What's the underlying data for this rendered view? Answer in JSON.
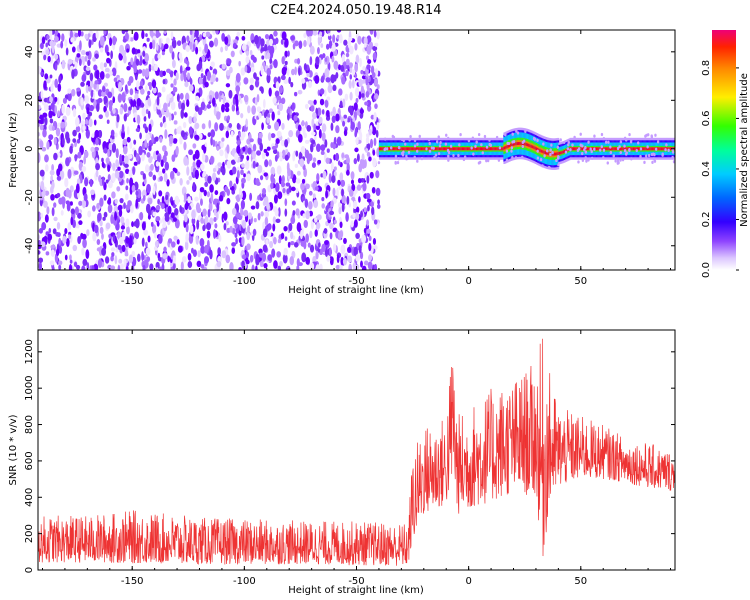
{
  "figure": {
    "title": "C2E4.2024.050.19.48.R14"
  },
  "colors": {
    "snr_line": "#ee3333",
    "frame": "#000000"
  },
  "chart_data": [
    {
      "type": "heatmap",
      "xlabel": "Height of straight line (km)",
      "ylabel": "Frequency (Hz)",
      "xlim": [
        -192,
        92
      ],
      "ylim": [
        -50,
        49
      ],
      "x_ticks": [
        "-150",
        "-100",
        "-50",
        "0",
        "50"
      ],
      "y_ticks": [
        "-40",
        "-20",
        "0",
        "20",
        "40"
      ],
      "colorbar": {
        "label": "Normalized spectral amplitude",
        "range": [
          0,
          0.95
        ],
        "ticks": [
          "0.0",
          "0.2",
          "0.4",
          "0.6",
          "0.8"
        ]
      },
      "description": "broadband noise (low amplitude) for heights below about -40 km; a narrow band near 0 Hz from about -40 km up to 92 km with peak amplitude near 0 Hz and a perturbation around 20 to 40 km",
      "noise_region_x": [
        -192,
        -40
      ],
      "signal_band_x": [
        -40,
        92
      ],
      "signal_center_hz": 0
    },
    {
      "type": "line",
      "xlabel": "Height of straight line (km)",
      "ylabel": "SNR (10 * v/v)",
      "xlim": [
        -192,
        92
      ],
      "ylim": [
        0,
        1320
      ],
      "x_ticks": [
        "-150",
        "-100",
        "-50",
        "0",
        "50"
      ],
      "y_ticks": [
        "0",
        "200",
        "400",
        "600",
        "800",
        "1000",
        "1200"
      ],
      "series": [
        {
          "envelope_x": [
            -192,
            -170,
            -150,
            -120,
            -100,
            -70,
            -50,
            -30,
            -27,
            -25,
            -20,
            -10,
            -7,
            -5,
            0,
            10,
            20,
            30,
            33,
            36,
            40,
            50,
            60,
            70,
            80,
            92
          ],
          "envelope_low": [
            40,
            40,
            35,
            30,
            30,
            30,
            25,
            20,
            20,
            150,
            300,
            350,
            500,
            300,
            330,
            370,
            420,
            400,
            30,
            350,
            450,
            500,
            500,
            480,
            450,
            430
          ],
          "envelope_high": [
            300,
            300,
            330,
            290,
            280,
            270,
            270,
            260,
            260,
            650,
            800,
            850,
            1300,
            860,
            900,
            1000,
            1050,
            1150,
            1300,
            1100,
            900,
            850,
            800,
            730,
            700,
            650
          ]
        }
      ]
    }
  ]
}
